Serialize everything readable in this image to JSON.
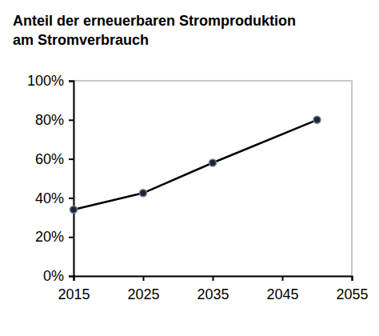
{
  "chart_data": {
    "type": "line",
    "title": [
      "Anteil der erneuerbaren Stromproduktion",
      "am Stromverbrauch"
    ],
    "x": [
      2015,
      2025,
      2035,
      2050
    ],
    "values": [
      34,
      42.5,
      58,
      80
    ],
    "color": "#000000",
    "marker": "circle",
    "xlim": [
      2015,
      2055
    ],
    "xticks": [
      2015,
      2025,
      2035,
      2045,
      2055
    ],
    "ylim": [
      0,
      100
    ],
    "yticks": [
      {
        "value": 0,
        "label": "0%"
      },
      {
        "value": 20,
        "label": "20%"
      },
      {
        "value": 40,
        "label": "40%"
      },
      {
        "value": 60,
        "label": "60%"
      },
      {
        "value": 80,
        "label": "80%"
      },
      {
        "value": 100,
        "label": "100%"
      }
    ],
    "grid": false
  }
}
